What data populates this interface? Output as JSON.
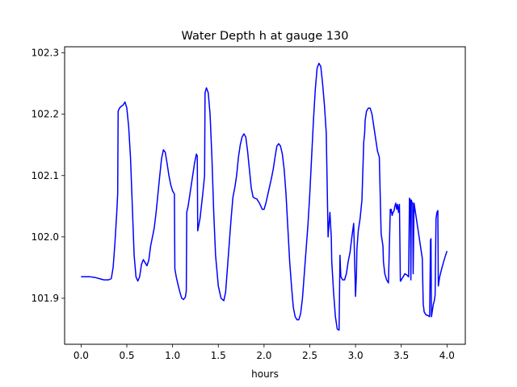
{
  "chart_data": {
    "type": "line",
    "title": "Water Depth h at gauge 130",
    "xlabel": "hours",
    "ylabel": "",
    "xlim": [
      -0.18,
      4.2
    ],
    "ylim": [
      101.825,
      102.31
    ],
    "xticks": [
      0.0,
      0.5,
      1.0,
      1.5,
      2.0,
      2.5,
      3.0,
      3.5,
      4.0
    ],
    "xtick_labels": [
      "0.0",
      "0.5",
      "1.0",
      "1.5",
      "2.0",
      "2.5",
      "3.0",
      "3.5",
      "4.0"
    ],
    "yticks": [
      101.9,
      102.0,
      102.1,
      102.2,
      102.3
    ],
    "ytick_labels": [
      "101.9",
      "102.0",
      "102.1",
      "102.2",
      "102.3"
    ],
    "grid": false,
    "series": [
      {
        "color": "#0000ff",
        "x": [
          0.0,
          0.1,
          0.15,
          0.2,
          0.25,
          0.3,
          0.33,
          0.35,
          0.37,
          0.39,
          0.4,
          0.405,
          0.42,
          0.44,
          0.46,
          0.48,
          0.5,
          0.52,
          0.54,
          0.56,
          0.58,
          0.6,
          0.62,
          0.64,
          0.66,
          0.68,
          0.7,
          0.72,
          0.74,
          0.76,
          0.78,
          0.8,
          0.82,
          0.84,
          0.86,
          0.88,
          0.9,
          0.92,
          0.94,
          0.96,
          0.98,
          1.0,
          1.02,
          1.025,
          1.04,
          1.06,
          1.08,
          1.1,
          1.12,
          1.14,
          1.15,
          1.155,
          1.17,
          1.2,
          1.22,
          1.24,
          1.26,
          1.27,
          1.275,
          1.3,
          1.33,
          1.35,
          1.355,
          1.37,
          1.39,
          1.41,
          1.43,
          1.45,
          1.47,
          1.5,
          1.53,
          1.56,
          1.58,
          1.6,
          1.62,
          1.64,
          1.66,
          1.68,
          1.7,
          1.72,
          1.74,
          1.76,
          1.78,
          1.8,
          1.82,
          1.84,
          1.86,
          1.88,
          1.9,
          1.92,
          1.95,
          1.98,
          2.0,
          2.02,
          2.05,
          2.08,
          2.1,
          2.12,
          2.14,
          2.16,
          2.18,
          2.2,
          2.22,
          2.24,
          2.26,
          2.28,
          2.3,
          2.32,
          2.34,
          2.36,
          2.38,
          2.4,
          2.42,
          2.44,
          2.46,
          2.48,
          2.5,
          2.52,
          2.54,
          2.56,
          2.58,
          2.6,
          2.62,
          2.64,
          2.66,
          2.68,
          2.7,
          2.72,
          2.735,
          2.74,
          2.76,
          2.78,
          2.8,
          2.82,
          2.83,
          2.835,
          2.84,
          2.86,
          2.88,
          2.9,
          2.92,
          2.94,
          2.96,
          2.98,
          3.0,
          3.01,
          3.015,
          3.03,
          3.05,
          3.07,
          3.09,
          3.1,
          3.105,
          3.12,
          3.14,
          3.16,
          3.18,
          3.2,
          3.22,
          3.24,
          3.26,
          3.28,
          3.3,
          3.305,
          3.32,
          3.34,
          3.36,
          3.38,
          3.385,
          3.39,
          3.4,
          3.41,
          3.42,
          3.43,
          3.44,
          3.45,
          3.46,
          3.47,
          3.48,
          3.49,
          3.495,
          3.5,
          3.52,
          3.54,
          3.56,
          3.58,
          3.59,
          3.6,
          3.605,
          3.61,
          3.62,
          3.625,
          3.63,
          3.64,
          3.645,
          3.65,
          3.66,
          3.67,
          3.68,
          3.69,
          3.7,
          3.71,
          3.72,
          3.73,
          3.74,
          3.745,
          3.75,
          3.77,
          3.79,
          3.81,
          3.82,
          3.825,
          3.83,
          3.835,
          3.84,
          3.845,
          3.85,
          3.86,
          3.87,
          3.88,
          3.885,
          3.89,
          3.9,
          3.905,
          3.91,
          3.92,
          3.94,
          3.96,
          3.98,
          4.0
        ],
        "y": [
          101.935,
          101.935,
          101.934,
          101.932,
          101.93,
          101.93,
          101.932,
          101.95,
          101.99,
          102.04,
          102.07,
          102.205,
          102.21,
          102.213,
          102.215,
          102.22,
          102.21,
          102.18,
          102.13,
          102.05,
          101.97,
          101.935,
          101.928,
          101.935,
          101.955,
          101.963,
          101.958,
          101.953,
          101.962,
          101.985,
          102.0,
          102.015,
          102.04,
          102.07,
          102.1,
          102.128,
          102.142,
          102.138,
          102.12,
          102.1,
          102.085,
          102.075,
          102.07,
          101.948,
          101.935,
          101.922,
          101.91,
          101.9,
          101.898,
          101.902,
          101.912,
          102.04,
          102.05,
          102.08,
          102.1,
          102.12,
          102.135,
          102.132,
          102.01,
          102.03,
          102.07,
          102.1,
          102.235,
          102.243,
          102.235,
          102.2,
          102.13,
          102.04,
          101.97,
          101.92,
          101.9,
          101.896,
          101.91,
          101.95,
          101.99,
          102.03,
          102.065,
          102.08,
          102.1,
          102.13,
          102.15,
          102.163,
          102.168,
          102.163,
          102.14,
          102.11,
          102.08,
          102.065,
          102.063,
          102.062,
          102.055,
          102.045,
          102.045,
          102.055,
          102.075,
          102.095,
          102.11,
          102.13,
          102.148,
          102.152,
          102.148,
          102.135,
          102.11,
          102.07,
          102.015,
          101.96,
          101.92,
          101.885,
          101.87,
          101.865,
          101.865,
          101.875,
          101.9,
          101.94,
          101.98,
          102.02,
          102.07,
          102.13,
          102.19,
          102.24,
          102.275,
          102.283,
          102.278,
          102.25,
          102.215,
          102.17,
          102.0,
          102.04,
          102.0,
          101.96,
          101.91,
          101.87,
          101.85,
          101.848,
          101.97,
          101.95,
          101.935,
          101.93,
          101.93,
          101.94,
          101.96,
          101.975,
          102.0,
          102.022,
          101.903,
          101.94,
          101.98,
          102.01,
          102.03,
          102.06,
          102.155,
          102.17,
          102.19,
          102.205,
          102.21,
          102.21,
          102.2,
          102.18,
          102.16,
          102.14,
          102.13,
          102.005,
          101.985,
          101.96,
          101.94,
          101.93,
          101.925,
          102.045,
          102.04,
          102.045,
          102.035,
          102.04,
          102.042,
          102.05,
          102.055,
          102.045,
          102.053,
          102.04,
          102.053,
          101.928,
          101.928,
          101.93,
          101.935,
          101.94,
          101.938,
          101.935,
          102.063,
          102.06,
          101.93,
          102.06,
          102.055,
          102.055,
          101.94,
          102.055,
          102.05,
          102.045,
          102.035,
          102.025,
          102.015,
          102.005,
          101.995,
          101.985,
          101.975,
          101.965,
          101.89,
          101.885,
          101.878,
          101.873,
          101.872,
          101.87,
          101.995,
          101.997,
          101.87,
          101.875,
          101.88,
          101.885,
          101.89,
          101.895,
          101.905,
          102.03,
          102.035,
          102.04,
          102.043,
          101.92,
          101.925,
          101.935,
          101.947,
          101.958,
          101.968,
          101.977
        ]
      }
    ]
  }
}
